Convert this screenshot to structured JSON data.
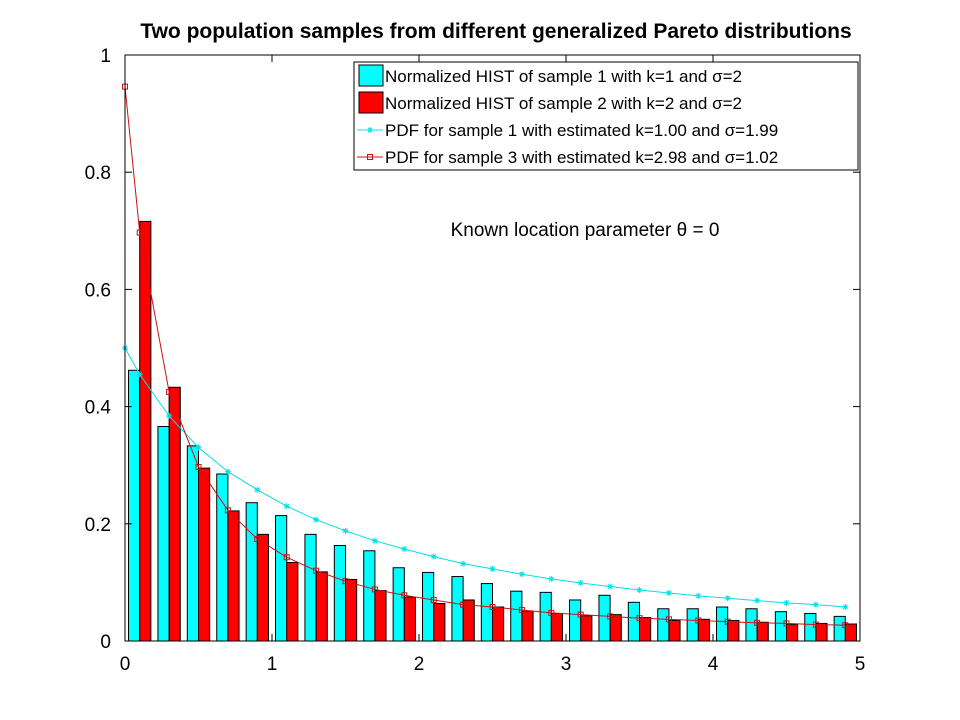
{
  "chart_data": {
    "type": "bar",
    "title": "Two population samples from different generalized Pareto distributions",
    "xlabel": "",
    "ylabel": "",
    "xlim": [
      0,
      5
    ],
    "ylim": [
      0,
      1
    ],
    "xticks": [
      0,
      1,
      2,
      3,
      4,
      5
    ],
    "xtick_labels": [
      "0",
      "1",
      "2",
      "3",
      "4",
      "5"
    ],
    "yticks": [
      0,
      0.2,
      0.4,
      0.6,
      0.8,
      1
    ],
    "ytick_labels": [
      "0",
      "0.2",
      "0.4",
      "0.6",
      "0.8",
      "1"
    ],
    "grid": false,
    "legend_position": "top-right",
    "annotation": "Known location parameter θ = 0",
    "bar_x": [
      0.1,
      0.3,
      0.5,
      0.7,
      0.9,
      1.1,
      1.3,
      1.5,
      1.7,
      1.9,
      2.1,
      2.3,
      2.5,
      2.7,
      2.9,
      3.1,
      3.3,
      3.5,
      3.7,
      3.9,
      4.1,
      4.3,
      4.5,
      4.7,
      4.9
    ],
    "bar_series": [
      {
        "name": "Normalized HIST of sample 1 with k=1 and σ=2",
        "color": "#00ffff",
        "values": [
          0.462,
          0.366,
          0.333,
          0.285,
          0.236,
          0.214,
          0.182,
          0.163,
          0.154,
          0.125,
          0.117,
          0.11,
          0.098,
          0.085,
          0.083,
          0.07,
          0.078,
          0.066,
          0.055,
          0.055,
          0.058,
          0.055,
          0.05,
          0.047,
          0.042
        ]
      },
      {
        "name": "Normalized HIST of sample 2 with k=2 and σ=2",
        "color": "#ff0000",
        "values": [
          0.716,
          0.433,
          0.295,
          0.222,
          0.182,
          0.134,
          0.118,
          0.105,
          0.086,
          0.075,
          0.064,
          0.07,
          0.058,
          0.051,
          0.047,
          0.043,
          0.045,
          0.04,
          0.035,
          0.037,
          0.035,
          0.032,
          0.028,
          0.03,
          0.029
        ]
      }
    ],
    "line_series": [
      {
        "name": "PDF for sample 1 with estimated k=1.00 and σ=1.99",
        "color": "#00e0e8",
        "marker": "star",
        "x": [
          0,
          0.1,
          0.3,
          0.5,
          0.7,
          0.9,
          1.1,
          1.3,
          1.5,
          1.7,
          1.9,
          2.1,
          2.3,
          2.5,
          2.7,
          2.9,
          3.1,
          3.3,
          3.5,
          3.7,
          3.9,
          4.1,
          4.3,
          4.5,
          4.7,
          4.9
        ],
        "y": [
          0.5,
          0.455,
          0.384,
          0.33,
          0.289,
          0.258,
          0.23,
          0.207,
          0.188,
          0.171,
          0.157,
          0.144,
          0.132,
          0.123,
          0.114,
          0.106,
          0.099,
          0.093,
          0.087,
          0.082,
          0.077,
          0.073,
          0.069,
          0.065,
          0.062,
          0.058
        ]
      },
      {
        "name": "PDF for sample 3 with estimated k=2.98 and σ=1.02",
        "color": "#cc1111",
        "marker": "square",
        "x": [
          0,
          0.1,
          0.3,
          0.5,
          0.7,
          0.9,
          1.1,
          1.3,
          1.5,
          1.7,
          1.9,
          2.1,
          2.3,
          2.5,
          2.7,
          2.9,
          3.1,
          3.3,
          3.5,
          3.7,
          3.9,
          4.1,
          4.3,
          4.5,
          4.7,
          4.9
        ],
        "y": [
          0.946,
          0.697,
          0.425,
          0.297,
          0.223,
          0.174,
          0.143,
          0.12,
          0.102,
          0.088,
          0.078,
          0.07,
          0.062,
          0.058,
          0.053,
          0.048,
          0.045,
          0.042,
          0.039,
          0.037,
          0.035,
          0.033,
          0.031,
          0.03,
          0.028,
          0.027
        ]
      }
    ]
  }
}
